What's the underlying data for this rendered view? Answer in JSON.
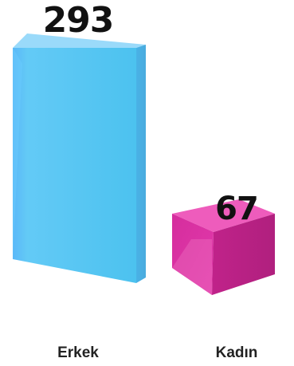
{
  "chart_data": {
    "type": "bar",
    "categories": [
      "Erkek",
      "Kadın"
    ],
    "values": [
      293,
      67
    ],
    "value_labels": [
      "293",
      "67"
    ],
    "title": "",
    "xlabel": "",
    "ylabel": "",
    "ylim": [
      0,
      293
    ],
    "grid": false,
    "legend": "none",
    "style": "3d-box",
    "colors": {
      "erkek_front": "#4fc3f2",
      "erkek_side": "#43aee3",
      "erkek_top": "#8fd9fb",
      "kadin_front": "#e42aa4",
      "kadin_side": "#b52283",
      "kadin_top": "#f062bd"
    }
  }
}
